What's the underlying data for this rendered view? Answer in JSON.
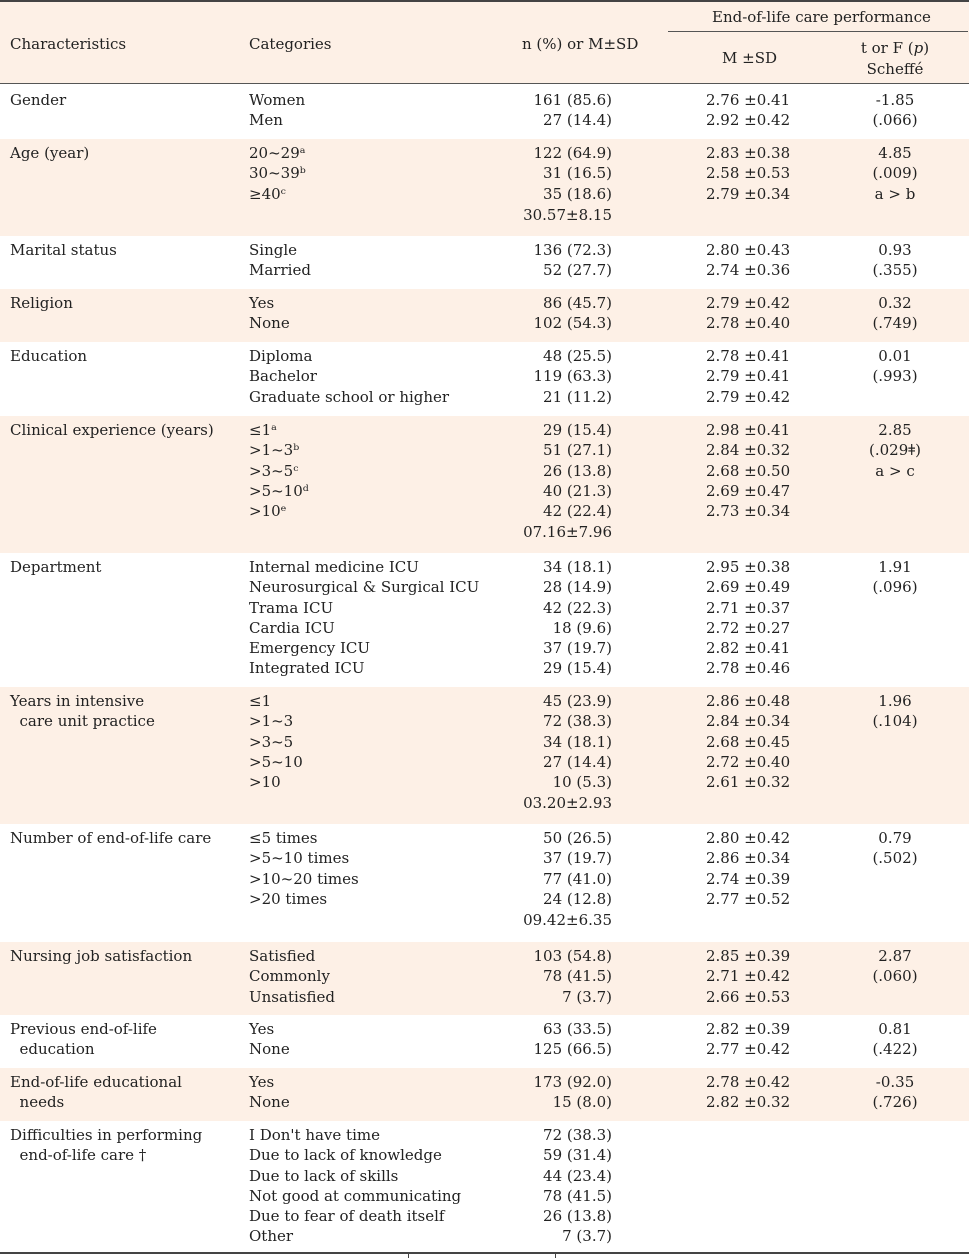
{
  "header": {
    "characteristics": "Characteristics",
    "categories": "Categories",
    "n_pct": "n (%) or M±SD",
    "group": "End-of-life care performance",
    "msd": "M ±SD",
    "stat_line1": "t or F (p)",
    "stat_line2": "Scheffé"
  },
  "rows": [
    {
      "label": [
        "Gender"
      ],
      "cats": [
        "Women",
        "Men"
      ],
      "n": [
        "161 (85.6)",
        "27 (14.4)"
      ],
      "msd": [
        "2.76 ±0.41",
        "2.92 ±0.42"
      ],
      "stat": [
        "-1.85",
        "(.066)"
      ]
    },
    {
      "label": [
        "Age (year)"
      ],
      "cats": [
        "20~29ᵃ",
        "30~39ᵇ",
        "≥40ᶜ"
      ],
      "n": [
        "122 (64.9)",
        "31 (16.5)",
        "35 (18.6)",
        "30.57±8.15"
      ],
      "msd": [
        "2.83 ±0.38",
        "2.58 ±0.53",
        "2.79 ±0.34"
      ],
      "stat": [
        "4.85",
        "(.009)",
        "a > b"
      ]
    },
    {
      "label": [
        "Marital status"
      ],
      "cats": [
        "Single",
        "Married"
      ],
      "n": [
        "136 (72.3)",
        "52 (27.7)"
      ],
      "msd": [
        "2.80 ±0.43",
        "2.74 ±0.36"
      ],
      "stat": [
        "0.93",
        "(.355)"
      ]
    },
    {
      "label": [
        "Religion"
      ],
      "cats": [
        "Yes",
        "None"
      ],
      "n": [
        "86 (45.7)",
        "102 (54.3)"
      ],
      "msd": [
        "2.79 ±0.42",
        "2.78 ±0.40"
      ],
      "stat": [
        "0.32",
        "(.749)"
      ]
    },
    {
      "label": [
        "Education"
      ],
      "cats": [
        "Diploma",
        "Bachelor",
        "Graduate school or higher"
      ],
      "n": [
        "48 (25.5)",
        "119 (63.3)",
        "21 (11.2)"
      ],
      "msd": [
        "2.78 ±0.41",
        "2.79 ±0.41",
        "2.79 ±0.42"
      ],
      "stat": [
        "0.01",
        "(.993)"
      ]
    },
    {
      "label": [
        "Clinical experience (years)"
      ],
      "cats": [
        "≤1ᵃ",
        ">1~3ᵇ",
        ">3~5ᶜ",
        ">5~10ᵈ",
        ">10ᵉ"
      ],
      "n": [
        "29 (15.4)",
        "51 (27.1)",
        "26 (13.8)",
        "40 (21.3)",
        "42 (22.4)",
        "07.16±7.96"
      ],
      "msd": [
        "2.98 ±0.41",
        "2.84 ±0.32",
        "2.68 ±0.50",
        "2.69 ±0.47",
        "2.73 ±0.34"
      ],
      "stat": [
        "2.85",
        "(.029ǂ)",
        "a > c"
      ]
    },
    {
      "label": [
        "Department"
      ],
      "cats": [
        "Internal medicine ICU",
        "Neurosurgical & Surgical ICU",
        "Trama ICU",
        "Cardia ICU",
        "Emergency ICU",
        "Integrated ICU"
      ],
      "n": [
        "34 (18.1)",
        "28 (14.9)",
        "42 (22.3)",
        "18 (9.6)",
        "37 (19.7)",
        "29 (15.4)"
      ],
      "msd": [
        "2.95 ±0.38",
        "2.69 ±0.49",
        "2.71 ±0.37",
        "2.72 ±0.27",
        "2.82 ±0.41",
        "2.78 ±0.46"
      ],
      "stat": [
        "1.91",
        "(.096)"
      ]
    },
    {
      "label": [
        "Years in intensive",
        "  care unit practice"
      ],
      "cats": [
        "≤1",
        ">1~3",
        ">3~5",
        ">5~10",
        ">10"
      ],
      "n": [
        "45 (23.9)",
        "72 (38.3)",
        "34 (18.1)",
        "27 (14.4)",
        "10 (5.3)",
        "03.20±2.93"
      ],
      "msd": [
        "2.86 ±0.48",
        "2.84 ±0.34",
        "2.68 ±0.45",
        "2.72 ±0.40",
        "2.61 ±0.32"
      ],
      "stat": [
        "1.96",
        "(.104)"
      ]
    },
    {
      "label": [
        "Number of end-of-life care"
      ],
      "cats": [
        "≤5 times",
        ">5~10 times",
        ">10~20 times",
        ">20 times"
      ],
      "n": [
        "50 (26.5)",
        "37 (19.7)",
        "77 (41.0)",
        "24 (12.8)",
        "09.42±6.35"
      ],
      "msd": [
        "2.80 ±0.42",
        "2.86 ±0.34",
        "2.74 ±0.39",
        "2.77 ±0.52"
      ],
      "stat": [
        "0.79",
        "(.502)"
      ]
    },
    {
      "label": [
        "Nursing job satisfaction"
      ],
      "cats": [
        "Satisfied",
        "Commonly",
        "Unsatisfied"
      ],
      "n": [
        "103 (54.8)",
        "78 (41.5)",
        "7 (3.7)"
      ],
      "msd": [
        "2.85 ±0.39",
        "2.71 ±0.42",
        "2.66 ±0.53"
      ],
      "stat": [
        "2.87",
        "(.060)"
      ]
    },
    {
      "label": [
        "Previous end-of-life",
        "  education"
      ],
      "cats": [
        "Yes",
        "None"
      ],
      "n": [
        "63 (33.5)",
        "125 (66.5)"
      ],
      "msd": [
        "2.82 ±0.39",
        "2.77 ±0.42"
      ],
      "stat": [
        "0.81",
        "(.422)"
      ]
    },
    {
      "label": [
        "End-of-life educational",
        "  needs"
      ],
      "cats": [
        "Yes",
        "None"
      ],
      "n": [
        "173 (92.0)",
        "15 (8.0)"
      ],
      "msd": [
        "2.78 ±0.42",
        "2.82 ±0.32"
      ],
      "stat": [
        "-0.35",
        "(.726)"
      ]
    },
    {
      "label": [
        "Difficulties in performing",
        "  end-of-life care †"
      ],
      "cats": [
        "I Don't have time",
        "Due to lack of knowledge",
        "Due to lack of skills",
        "Not good at communicating",
        "Due to fear of death itself",
        "Other"
      ],
      "n": [
        "72 (38.3)",
        "59 (31.4)",
        "44 (23.4)",
        "78 (41.5)",
        "26 (13.8)",
        "7 (3.7)"
      ],
      "msd": [],
      "stat": []
    }
  ]
}
